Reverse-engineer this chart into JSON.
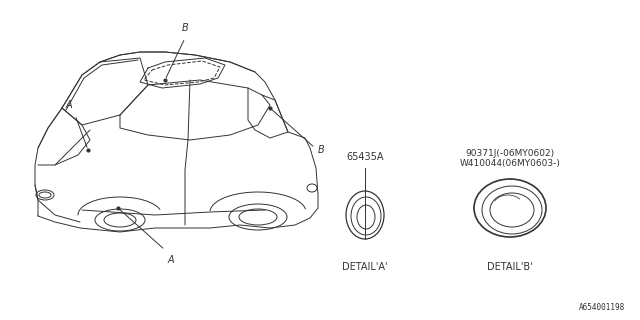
{
  "bg_color": "#ffffff",
  "line_color": "#333333",
  "part_number_A": "65435A",
  "part_number_B_line1": "90371J(-06MY0602)",
  "part_number_B_line2": "W410044(06MY0603-)",
  "detail_a_label": "DETAIL'A'",
  "detail_b_label": "DETAIL'B'",
  "label_A": "A",
  "label_B": "B",
  "footer": "A654001198",
  "lw": 0.7
}
